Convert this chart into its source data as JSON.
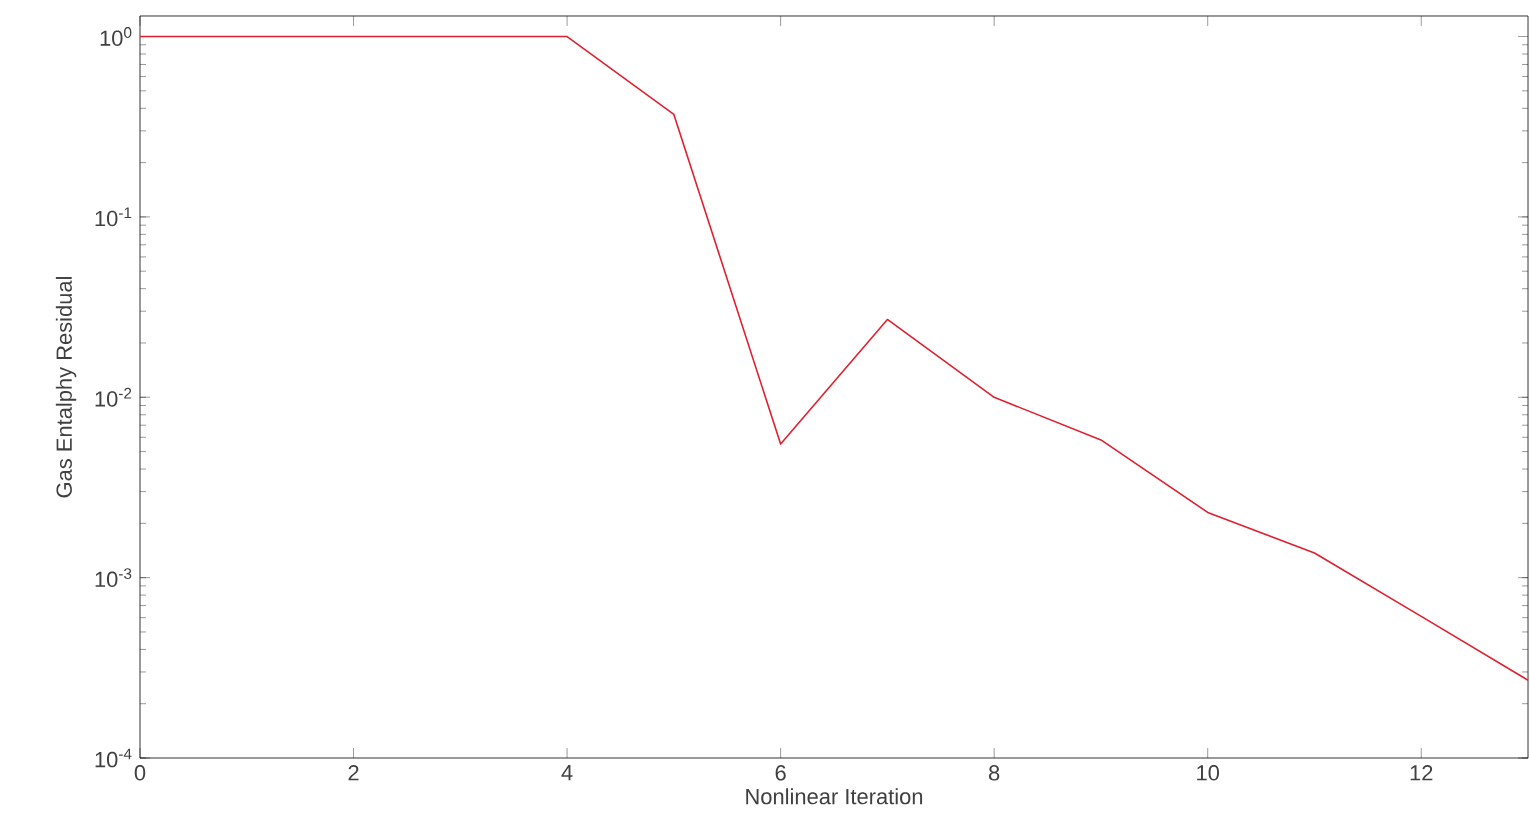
{
  "chart_data": {
    "type": "line",
    "xlabel": "Nonlinear Iteration",
    "ylabel": "Gas Entalphy Residual",
    "x": [
      0,
      1,
      2,
      3,
      4,
      5,
      6,
      7,
      8,
      9,
      10,
      11,
      12,
      13
    ],
    "series": [
      {
        "color": "#e0202f",
        "values": [
          1.0,
          1.0,
          1.0,
          1.0,
          1.0,
          0.37,
          0.0055,
          0.027,
          0.01,
          0.0058,
          0.0023,
          0.00137,
          0.00061,
          0.00027
        ]
      }
    ],
    "log": "y",
    "xlim": [
      0,
      13
    ],
    "ylim": [
      0.0001,
      1.3
    ],
    "xticks": [
      0,
      2,
      4,
      6,
      8,
      10,
      12
    ],
    "yticks": [
      {
        "value": 0.0001,
        "label": "10$^{-4}$"
      },
      {
        "value": 0.001,
        "label": "10$^{-3}$"
      },
      {
        "value": 0.01,
        "label": "10$^{-2}$"
      },
      {
        "value": 0.1,
        "label": "10$^{-1}$"
      },
      {
        "value": 1,
        "label": "10$^{0}$"
      }
    ],
    "grid": false,
    "marker": "none",
    "line_style": "solid"
  }
}
